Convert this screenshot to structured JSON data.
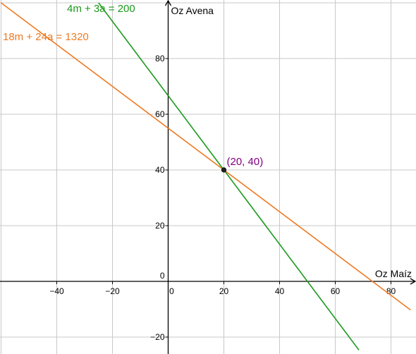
{
  "chart_data": {
    "type": "line",
    "title": "",
    "xlabel": "Oz Maíz",
    "ylabel": "Oz Avena",
    "xlim": [
      -60,
      87
    ],
    "ylim": [
      -26,
      100
    ],
    "grid": true,
    "x_ticks": [
      -40,
      -20,
      0,
      20,
      40,
      60,
      80
    ],
    "y_ticks": [
      -20,
      0,
      20,
      40,
      60,
      80
    ],
    "tick_labels_x": [
      "−40",
      "−20",
      "0",
      "20",
      "40",
      "60",
      "80"
    ],
    "tick_labels_y": [
      "−20",
      "0",
      "20",
      "40",
      "60",
      "80"
    ],
    "series": [
      {
        "name": "4m + 3a = 200",
        "color": "#1a9a1a",
        "x": [
          -25,
          68.5
        ],
        "y": [
          100,
          -24.67
        ]
      },
      {
        "name": "18m + 24a = 1320",
        "color": "#ee7a22",
        "x": [
          -60,
          87
        ],
        "y": [
          100,
          -10.25
        ]
      }
    ],
    "points": [
      {
        "label": "(20, 40)",
        "x": 20,
        "y": 40,
        "color": "#800080"
      }
    ]
  }
}
